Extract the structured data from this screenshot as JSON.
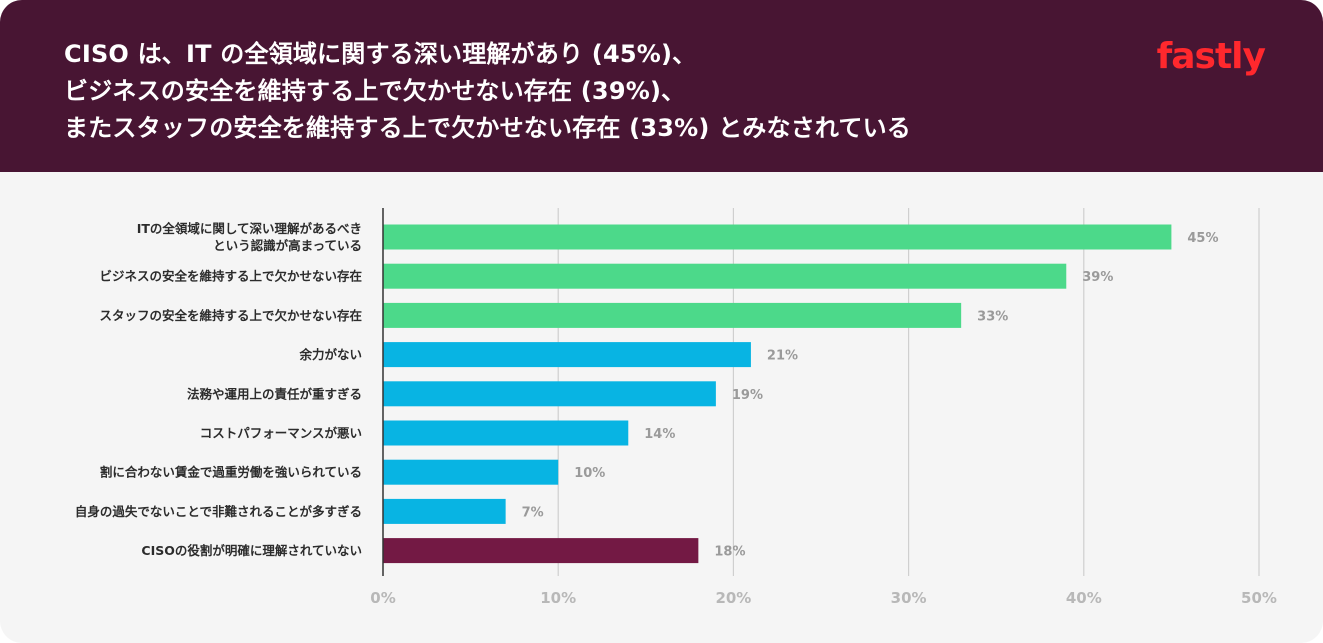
{
  "header": {
    "title_lines": [
      "CISO は、IT の全領域に関する深い理解があり (45%)、",
      "ビジネスの安全を維持する上で欠かせない存在 (39%)、",
      "またスタッフの安全を維持する上で欠かせない存在 (33%) とみなされている"
    ],
    "logo_text": "fastly"
  },
  "chart_data": {
    "type": "bar",
    "orientation": "horizontal",
    "categories": [
      [
        "ITの全領域に関して深い理解があるべき",
        "という認識が高まっている"
      ],
      [
        "ビジネスの安全を維持する上で欠かせない存在"
      ],
      [
        "スタッフの安全を維持する上で欠かせない存在"
      ],
      [
        "余力がない"
      ],
      [
        "法務や運用上の責任が重すぎる"
      ],
      [
        "コストパフォーマンスが悪い"
      ],
      [
        "割に合わない賃金で過重労働を強いられている"
      ],
      [
        "自身の過失でないことで非難されることが多すぎる"
      ],
      [
        "CISOの役割が明確に理解されていない"
      ]
    ],
    "values": [
      45,
      39,
      33,
      21,
      19,
      14,
      10,
      7,
      18
    ],
    "value_labels": [
      "45%",
      "39%",
      "33%",
      "21%",
      "19%",
      "14%",
      "10%",
      "7%",
      "18%"
    ],
    "bar_colors": [
      "#4cd98a",
      "#4cd98a",
      "#4cd98a",
      "#08b4e3",
      "#08b4e3",
      "#08b4e3",
      "#08b4e3",
      "#08b4e3",
      "#731944"
    ],
    "xlim": [
      0,
      50
    ],
    "xticks": [
      0,
      10,
      20,
      30,
      40,
      50
    ],
    "xtick_labels": [
      "0%",
      "10%",
      "20%",
      "30%",
      "40%",
      "50%"
    ],
    "grid": true
  }
}
